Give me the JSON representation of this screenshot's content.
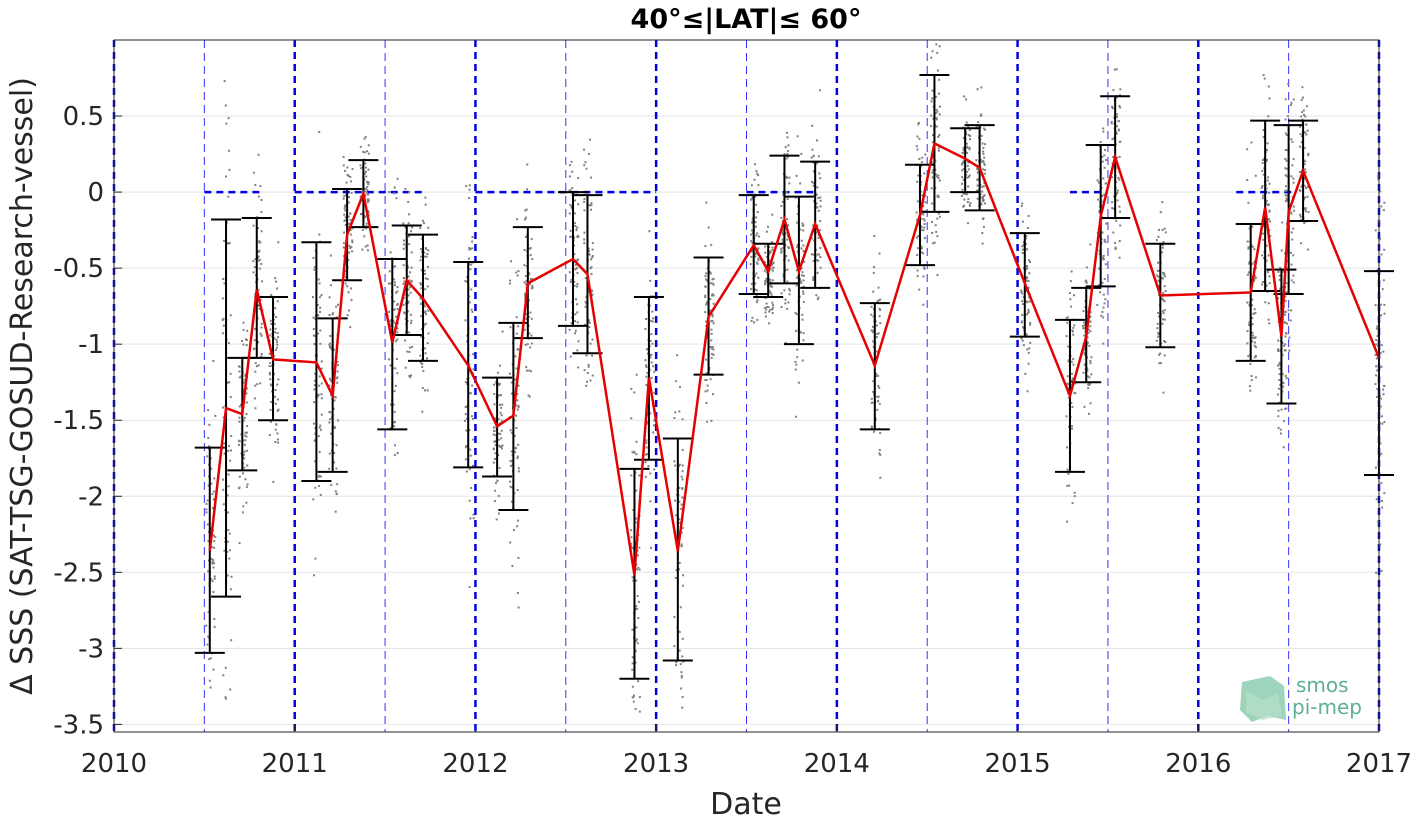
{
  "chart_data": {
    "type": "line",
    "title": "40°≤|LAT|≤ 60°",
    "xlabel": "Date",
    "ylabel": "Δ SSS (SAT-TSG-GOSUD-Research-vessel)",
    "xlim": [
      2010,
      2017
    ],
    "ylim": [
      -3.55,
      1.0
    ],
    "grid": true,
    "x_ticks": [
      {
        "value": 2010,
        "label": "2010"
      },
      {
        "value": 2011,
        "label": "2011"
      },
      {
        "value": 2012,
        "label": "2012"
      },
      {
        "value": 2013,
        "label": "2013"
      },
      {
        "value": 2014,
        "label": "2014"
      },
      {
        "value": 2015,
        "label": "2015"
      },
      {
        "value": 2016,
        "label": "2016"
      },
      {
        "value": 2017,
        "label": "2017"
      }
    ],
    "y_ticks": [
      {
        "value": 0.5,
        "label": "0.5"
      },
      {
        "value": 0,
        "label": "0"
      },
      {
        "value": -0.5,
        "label": "-0.5"
      },
      {
        "value": -1,
        "label": "-1"
      },
      {
        "value": -1.5,
        "label": "-1.5"
      },
      {
        "value": -2,
        "label": "-2"
      },
      {
        "value": -2.5,
        "label": "-2.5"
      },
      {
        "value": -3,
        "label": "-3"
      },
      {
        "value": -3.5,
        "label": "-3.5"
      }
    ],
    "series": [
      {
        "kind": "monthly-mean-with-std-errorbars",
        "color": "#e60000",
        "points": [
          {
            "x": 2010.53,
            "y": -2.36,
            "lo": -3.03,
            "hi": -1.68
          },
          {
            "x": 2010.62,
            "y": -1.42,
            "lo": -2.66,
            "hi": -0.18
          },
          {
            "x": 2010.71,
            "y": -1.46,
            "lo": -1.83,
            "hi": -1.09
          },
          {
            "x": 2010.79,
            "y": -0.64,
            "lo": -1.09,
            "hi": -0.17
          },
          {
            "x": 2010.88,
            "y": -1.1,
            "lo": -1.5,
            "hi": -0.69
          },
          {
            "x": 2011.12,
            "y": -1.12,
            "lo": -1.9,
            "hi": -0.33
          },
          {
            "x": 2011.21,
            "y": -1.34,
            "lo": -1.84,
            "hi": -0.83
          },
          {
            "x": 2011.29,
            "y": -0.28,
            "lo": -0.58,
            "hi": 0.02
          },
          {
            "x": 2011.38,
            "y": -0.01,
            "lo": -0.23,
            "hi": 0.21
          },
          {
            "x": 2011.54,
            "y": -0.99,
            "lo": -1.56,
            "hi": -0.44
          },
          {
            "x": 2011.62,
            "y": -0.58,
            "lo": -0.94,
            "hi": -0.22
          },
          {
            "x": 2011.71,
            "y": -0.7,
            "lo": -1.11,
            "hi": -0.28
          },
          {
            "x": 2011.96,
            "y": -1.14,
            "lo": -1.81,
            "hi": -0.46
          },
          {
            "x": 2012.12,
            "y": -1.54,
            "lo": -1.87,
            "hi": -1.22
          },
          {
            "x": 2012.21,
            "y": -1.47,
            "lo": -2.09,
            "hi": -0.86
          },
          {
            "x": 2012.29,
            "y": -0.6,
            "lo": -0.96,
            "hi": -0.23
          },
          {
            "x": 2012.54,
            "y": -0.44,
            "lo": -0.88,
            "hi": 0.0
          },
          {
            "x": 2012.62,
            "y": -0.54,
            "lo": -1.06,
            "hi": -0.02
          },
          {
            "x": 2012.88,
            "y": -2.52,
            "lo": -3.2,
            "hi": -1.82
          },
          {
            "x": 2012.96,
            "y": -1.22,
            "lo": -1.76,
            "hi": -0.69
          },
          {
            "x": 2013.12,
            "y": -2.36,
            "lo": -3.08,
            "hi": -1.62
          },
          {
            "x": 2013.29,
            "y": -0.82,
            "lo": -1.2,
            "hi": -0.43
          },
          {
            "x": 2013.54,
            "y": -0.35,
            "lo": -0.67,
            "hi": -0.02
          },
          {
            "x": 2013.62,
            "y": -0.52,
            "lo": -0.69,
            "hi": -0.34
          },
          {
            "x": 2013.71,
            "y": -0.18,
            "lo": -0.6,
            "hi": 0.24
          },
          {
            "x": 2013.79,
            "y": -0.52,
            "lo": -1.0,
            "hi": -0.03
          },
          {
            "x": 2013.88,
            "y": -0.21,
            "lo": -0.63,
            "hi": 0.2
          },
          {
            "x": 2014.21,
            "y": -1.14,
            "lo": -1.56,
            "hi": -0.73
          },
          {
            "x": 2014.46,
            "y": -0.15,
            "lo": -0.48,
            "hi": 0.18
          },
          {
            "x": 2014.54,
            "y": 0.32,
            "lo": -0.13,
            "hi": 0.77
          },
          {
            "x": 2014.71,
            "y": 0.22,
            "lo": 0.0,
            "hi": 0.42
          },
          {
            "x": 2014.79,
            "y": 0.16,
            "lo": -0.12,
            "hi": 0.44
          },
          {
            "x": 2015.04,
            "y": -0.6,
            "lo": -0.95,
            "hi": -0.27
          },
          {
            "x": 2015.29,
            "y": -1.34,
            "lo": -1.84,
            "hi": -0.84
          },
          {
            "x": 2015.38,
            "y": -0.95,
            "lo": -1.25,
            "hi": -0.63
          },
          {
            "x": 2015.46,
            "y": -0.16,
            "lo": -0.62,
            "hi": 0.31
          },
          {
            "x": 2015.54,
            "y": 0.23,
            "lo": -0.17,
            "hi": 0.63
          },
          {
            "x": 2015.79,
            "y": -0.68,
            "lo": -1.02,
            "hi": -0.34
          },
          {
            "x": 2016.29,
            "y": -0.66,
            "lo": -1.11,
            "hi": -0.21
          },
          {
            "x": 2016.37,
            "y": -0.1,
            "lo": -0.65,
            "hi": 0.47
          },
          {
            "x": 2016.46,
            "y": -0.95,
            "lo": -1.39,
            "hi": -0.51
          },
          {
            "x": 2016.5,
            "y": -0.13,
            "lo": -0.67,
            "hi": 0.44
          },
          {
            "x": 2016.58,
            "y": 0.14,
            "lo": -0.19,
            "hi": 0.47
          },
          {
            "x": 2017.0,
            "y": -1.09,
            "lo": -1.86,
            "hi": -0.52
          }
        ]
      }
    ],
    "vertical_reference_lines": {
      "year_lines_color": "#0000e6",
      "half_year_lines_color": "#3333ff",
      "half_year_lines": [
        2010.5,
        2011.5,
        2012.5,
        2013.5,
        2014.5,
        2015.5,
        2016.5
      ],
      "year_lines": [
        2010,
        2011,
        2012,
        2013,
        2014,
        2015,
        2016,
        2017
      ]
    },
    "zero_reference_segments": {
      "color": "#0000e6",
      "y": 0,
      "segments": [
        [
          2010.5,
          2010.83
        ],
        [
          2011.0,
          2011.71
        ],
        [
          2012.0,
          2013.0
        ],
        [
          2013.5,
          2013.87
        ],
        [
          2015.29,
          2015.5
        ],
        [
          2016.21,
          2016.54
        ]
      ]
    },
    "scatter_color": "#808080",
    "logo": {
      "line1": "smos",
      "line2": "pi-mep"
    }
  }
}
